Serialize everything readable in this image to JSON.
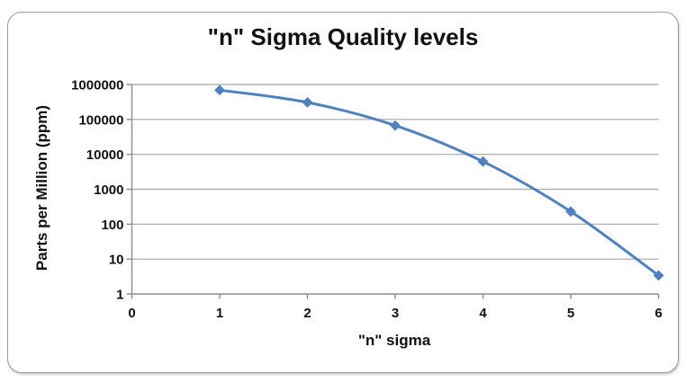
{
  "chart_data": {
    "type": "line",
    "title": "\"n\" Sigma Quality levels",
    "xlabel": "\"n\" sigma",
    "ylabel": "Parts per Million (ppm)",
    "x": [
      1,
      2,
      3,
      4,
      5,
      6
    ],
    "values": [
      690000,
      308000,
      66800,
      6210,
      230,
      3.4
    ],
    "x_ticks": [
      0,
      1,
      2,
      3,
      4,
      5,
      6
    ],
    "y_ticks": [
      1,
      10,
      100,
      1000,
      10000,
      100000,
      1000000
    ],
    "y_scale": "log",
    "xlim": [
      0,
      6
    ],
    "ylim": [
      1,
      1000000
    ],
    "grid": "horizontal",
    "legend": "none",
    "marker": "diamond",
    "smoothed": true,
    "colors": {
      "line": "#4F81BD",
      "marker": "#4F81BD",
      "gridline": "#A6A6A6",
      "axis": "#8C8C8C",
      "text": "#111111",
      "frame_border": "#9B9B9B",
      "background": "#FFFFFF"
    }
  }
}
